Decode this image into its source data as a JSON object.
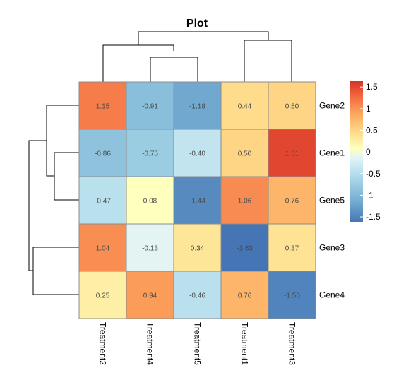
{
  "chart_data": {
    "type": "heatmap",
    "title": "Plot",
    "rows": [
      "Gene2",
      "Gene1",
      "Gene5",
      "Gene3",
      "Gene4"
    ],
    "columns": [
      "Treatment2",
      "Treatment4",
      "Treatment5",
      "Treatment1",
      "Treatment3"
    ],
    "values": [
      [
        1.15,
        -0.91,
        -1.18,
        0.44,
        0.5
      ],
      [
        -0.86,
        -0.75,
        -0.4,
        0.5,
        1.51
      ],
      [
        -0.47,
        0.08,
        -1.44,
        1.06,
        0.76
      ],
      [
        1.04,
        -0.13,
        0.34,
        -1.63,
        0.37
      ],
      [
        0.25,
        0.94,
        -0.46,
        0.76,
        -1.5
      ]
    ],
    "cell_labels": [
      [
        "1.15",
        "-0.91",
        "-1.18",
        "0.44",
        "0.50"
      ],
      [
        "-0.86",
        "-0.75",
        "-0.40",
        "0.50",
        "1.51"
      ],
      [
        "-0.47",
        "0.08",
        "-1.44",
        "1.06",
        "0.76"
      ],
      [
        "1.04",
        "-0.13",
        "0.34",
        "-1.63",
        "0.37"
      ],
      [
        "0.25",
        "0.94",
        "-0.46",
        "0.76",
        "-1.50"
      ]
    ],
    "color_scale": {
      "min": -1.63,
      "max": 1.65,
      "low_color": "#4575b4",
      "mid_color": "#ffffbf",
      "high_color": "#d73027",
      "ticks": [
        1.5,
        1,
        0.5,
        0,
        -0.5,
        -1,
        -1.5
      ],
      "tick_labels": [
        "1.5",
        "1",
        "0.5",
        "0",
        "-0.5",
        "-1",
        "-1.5"
      ]
    },
    "row_dendrogram": "((Gene2,(Gene1,Gene5)),(Gene3,Gene4))",
    "column_dendrogram": "((Treatment2,(Treatment4,Treatment5)),(Treatment1,Treatment3))",
    "legend_position": "right"
  }
}
